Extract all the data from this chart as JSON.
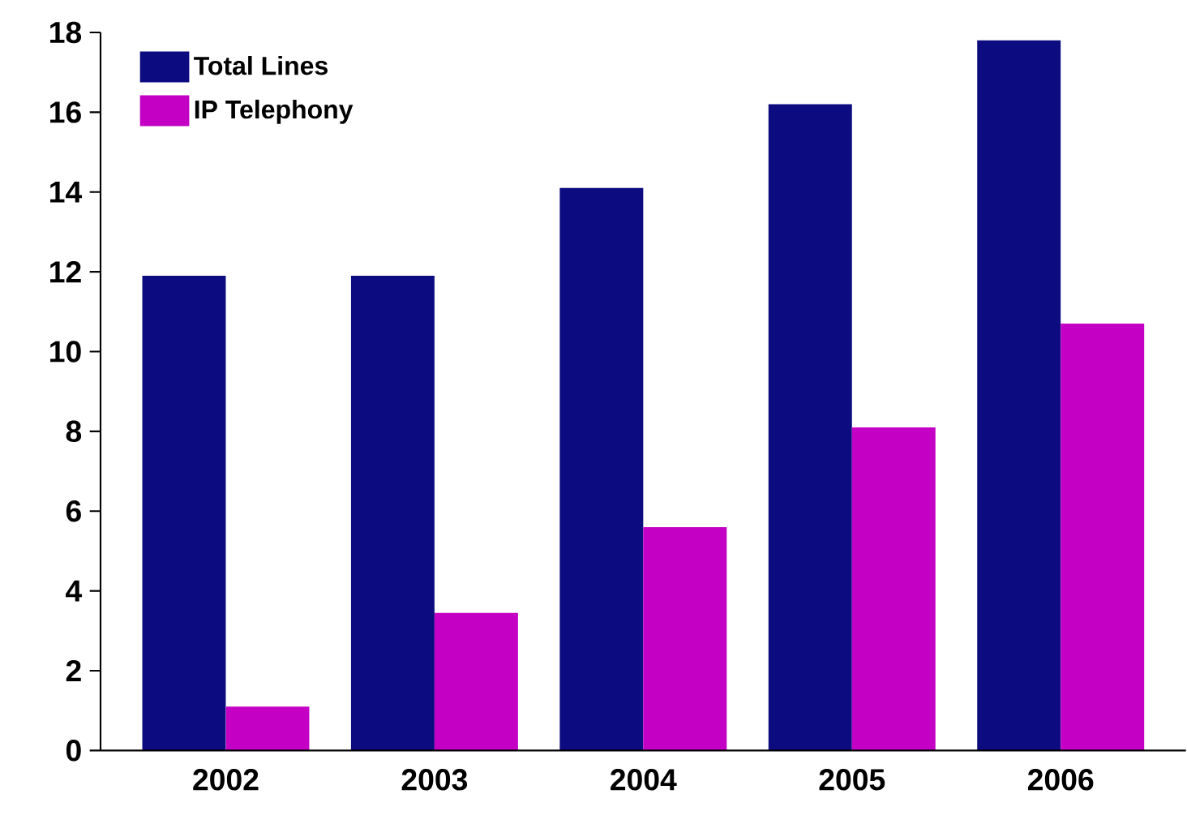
{
  "chart_data": {
    "type": "bar",
    "categories": [
      "2002",
      "2003",
      "2004",
      "2005",
      "2006"
    ],
    "series": [
      {
        "name": "Total Lines",
        "color": "#0c0c80",
        "values": [
          11.9,
          11.9,
          14.1,
          16.2,
          17.8
        ]
      },
      {
        "name": "IP Telephony",
        "color": "#c400c4",
        "values": [
          1.1,
          3.45,
          5.6,
          8.1,
          10.7
        ]
      }
    ],
    "ylim": [
      0,
      18
    ],
    "yticks": [
      0,
      2,
      4,
      6,
      8,
      10,
      12,
      14,
      16,
      18
    ],
    "grid": false,
    "legend": "top left"
  }
}
